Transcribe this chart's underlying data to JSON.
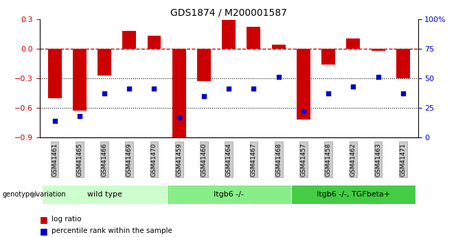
{
  "title": "GDS1874 / M200001587",
  "samples": [
    "GSM41461",
    "GSM41465",
    "GSM41466",
    "GSM41469",
    "GSM41470",
    "GSM41459",
    "GSM41460",
    "GSM41464",
    "GSM41467",
    "GSM41468",
    "GSM41457",
    "GSM41458",
    "GSM41462",
    "GSM41463",
    "GSM41471"
  ],
  "log_ratio": [
    -0.5,
    -0.63,
    -0.27,
    0.18,
    0.13,
    -0.9,
    -0.33,
    0.29,
    0.22,
    0.04,
    -0.72,
    -0.16,
    0.1,
    -0.02,
    -0.3
  ],
  "percentile_rank": [
    14,
    18,
    37,
    41,
    41,
    17,
    35,
    41,
    41,
    51,
    22,
    37,
    43,
    51,
    37
  ],
  "bar_color": "#cc0000",
  "square_color": "#0000cc",
  "dashed_line_color": "#cc0000",
  "groups": [
    {
      "label": "wild type",
      "start": 0,
      "end": 5,
      "color": "#ccffcc"
    },
    {
      "label": "Itgb6 -/-",
      "start": 5,
      "end": 10,
      "color": "#88ee88"
    },
    {
      "label": "Itgb6 -/-, TGFbeta+",
      "start": 10,
      "end": 15,
      "color": "#44cc44"
    }
  ],
  "ylim_left": [
    -0.9,
    0.3
  ],
  "ylim_right": [
    0,
    100
  ],
  "right_ticks": [
    0,
    25,
    50,
    75,
    100
  ],
  "right_tick_labels": [
    "0",
    "25",
    "50",
    "75",
    "100%"
  ],
  "left_ticks": [
    -0.9,
    -0.6,
    -0.3,
    0.0,
    0.3
  ],
  "genotype_label": "genotype/variation",
  "legend_items": [
    {
      "color": "#cc0000",
      "label": "log ratio"
    },
    {
      "color": "#0000cc",
      "label": "percentile rank within the sample"
    }
  ],
  "bg_color": "#ffffff",
  "tick_bg_color": "#cccccc"
}
